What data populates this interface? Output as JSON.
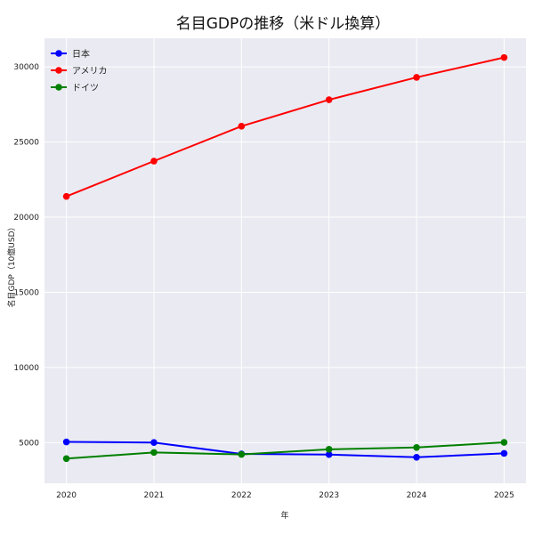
{
  "chart_data": {
    "type": "line",
    "title": "名目GDPの推移（米ドル換算）",
    "xlabel": "年",
    "ylabel": "名目GDP（10億USD）",
    "x": [
      2020,
      2021,
      2022,
      2023,
      2024,
      2025
    ],
    "x_tick_labels": [
      "2020",
      "2021",
      "2022",
      "2023",
      "2024",
      "2025"
    ],
    "yticks": [
      5000,
      10000,
      15000,
      20000,
      25000,
      30000
    ],
    "y_tick_labels": [
      "5000",
      "10000",
      "15000",
      "20000",
      "25000",
      "30000"
    ],
    "ylim": [
      2300,
      31900
    ],
    "xlim": [
      2019.75,
      2025.25
    ],
    "grid": true,
    "legend_position": "top-left",
    "series": [
      {
        "name": "日本",
        "color": "#0000ff",
        "values": [
          5050,
          5010,
          4250,
          4210,
          4030,
          4290
        ]
      },
      {
        "name": "アメリカ",
        "color": "#ff0000",
        "values": [
          21380,
          23730,
          26050,
          27810,
          29300,
          30620
        ]
      },
      {
        "name": "ドイツ",
        "color": "#008000",
        "values": [
          3940,
          4350,
          4220,
          4560,
          4680,
          5020
        ]
      }
    ]
  }
}
